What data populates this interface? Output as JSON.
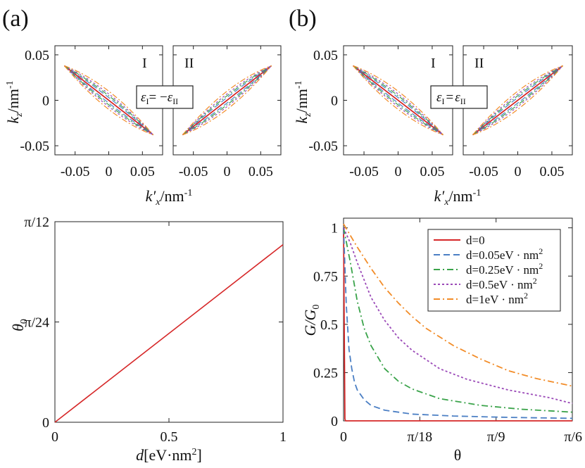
{
  "figure": {
    "panel_a_label": "(a)",
    "panel_b_label": "(b)"
  },
  "chart_data": [
    {
      "id": "a-top",
      "type": "line",
      "panel": "(a)",
      "subplots": [
        "I",
        "II"
      ],
      "annotation_eps": "ε",
      "annotation_sub_I": "I",
      "annotation_equals": "= −",
      "annotation_sub_II": "II",
      "xlabel_main": "k′",
      "xlabel_sub": "x",
      "xlabel_unit": "/nm",
      "xlabel_sup": "-1",
      "ylabel_main": "k",
      "ylabel_sub": "z",
      "ylabel_unit": "/nm",
      "ylabel_sup": "-1",
      "xlim": [
        -0.08,
        0.08
      ],
      "ylim": [
        -0.06,
        0.06
      ],
      "xticks": [
        "-0.05",
        "0",
        "0.05"
      ],
      "yticks": [
        "0.05",
        "0",
        "-0.05"
      ],
      "curve_end_kx": 0.066,
      "curve_end_kz": 0.038,
      "series_bulge": [
        0,
        0.003,
        0.005,
        0.007,
        0.01
      ],
      "series_colors": [
        "#d62728",
        "#4b7fc4",
        "#3aa34a",
        "#9b4ab8",
        "#f28c28"
      ]
    },
    {
      "id": "b-top",
      "type": "line",
      "panel": "(b)",
      "subplots": [
        "I",
        "II"
      ],
      "annotation_eps": "ε",
      "annotation_sub_I": "I",
      "annotation_equals": "=",
      "annotation_sub_II": "II",
      "xlabel_main": "k′",
      "xlabel_sub": "x",
      "xlabel_unit": "/nm",
      "xlabel_sup": "-1",
      "ylabel_main": "k",
      "ylabel_sub": "z",
      "ylabel_unit": "/nm",
      "ylabel_sup": "-1",
      "xlim": [
        -0.08,
        0.08
      ],
      "ylim": [
        -0.06,
        0.06
      ],
      "xticks": [
        "-0.05",
        "0",
        "0.05"
      ],
      "yticks": [
        "0.05",
        "0",
        "-0.05"
      ],
      "curve_end_kx": 0.066,
      "curve_end_kz": 0.038,
      "series_bulge": [
        0,
        0.003,
        0.005,
        0.007,
        0.01
      ],
      "series_colors": [
        "#d62728",
        "#4b7fc4",
        "#3aa34a",
        "#9b4ab8",
        "#f28c28"
      ]
    },
    {
      "id": "a-bottom",
      "type": "line",
      "panel": "(a)",
      "xlabel_main": "d",
      "xlabel_unit": "[eV·nm",
      "xlabel_sup": "2",
      "xlabel_close": "]",
      "ylabel_main": "θ",
      "ylabel_sub": "0",
      "xlim": [
        0,
        1
      ],
      "ylim_frac_of_pi": [
        0,
        0.08333
      ],
      "xticks": [
        "0",
        "0.5",
        "1"
      ],
      "yticks": [
        "0",
        "π/24",
        "π/12"
      ],
      "series": [
        {
          "name": "θ0",
          "x": [
            0,
            1
          ],
          "y_frac_of_pi": [
            0,
            0.0738
          ],
          "color": "#d62728"
        }
      ]
    },
    {
      "id": "b-bottom",
      "type": "line",
      "panel": "(b)",
      "xlabel": "θ",
      "ylabel_main": "G/G",
      "ylabel_sub": "0",
      "xlim_frac_of_pi": [
        0,
        0.16667
      ],
      "ylim": [
        0,
        1.05
      ],
      "xticks": [
        "0",
        "π/18",
        "π/9",
        "π/6"
      ],
      "yticks": [
        "0",
        "0.25",
        "0.5",
        "0.75",
        "1"
      ],
      "legend_position": "top-right",
      "series": [
        {
          "name": "d=0",
          "color": "#d62728",
          "dash": "solid",
          "theta_frac_of_pi": [
            0,
            0.0005,
            0.001,
            0.0015,
            0.1667
          ],
          "G": [
            1.0,
            0.5,
            0.01,
            0.0,
            0.0
          ]
        },
        {
          "name": "d=0.05eV · nm",
          "sup": "2",
          "color": "#4b7fc4",
          "dash": "dashed",
          "theta_frac_of_pi": [
            0,
            0.002,
            0.004,
            0.006,
            0.008,
            0.01,
            0.015,
            0.02,
            0.03,
            0.05,
            0.08,
            0.12,
            0.1667
          ],
          "G": [
            1.0,
            0.6,
            0.37,
            0.27,
            0.2,
            0.16,
            0.11,
            0.08,
            0.055,
            0.035,
            0.025,
            0.018,
            0.013
          ]
        },
        {
          "name": "d=0.25eV · nm",
          "sup": "2",
          "color": "#3aa34a",
          "dash": "dashdot",
          "theta_frac_of_pi": [
            0,
            0.005,
            0.01,
            0.015,
            0.02,
            0.03,
            0.04,
            0.05,
            0.07,
            0.1,
            0.13,
            0.1667
          ],
          "G": [
            1.0,
            0.82,
            0.62,
            0.48,
            0.39,
            0.27,
            0.205,
            0.165,
            0.115,
            0.08,
            0.06,
            0.045
          ]
        },
        {
          "name": "d=0.5eV · nm",
          "sup": "2",
          "color": "#9b4ab8",
          "dash": "dotted",
          "theta_frac_of_pi": [
            0,
            0.005,
            0.01,
            0.02,
            0.03,
            0.04,
            0.05,
            0.07,
            0.09,
            0.12,
            0.15,
            0.1667
          ],
          "G": [
            1.0,
            0.92,
            0.82,
            0.64,
            0.52,
            0.43,
            0.365,
            0.27,
            0.215,
            0.16,
            0.12,
            0.09
          ]
        },
        {
          "name": "d=1eV · nm",
          "sup": "2",
          "color": "#f28c28",
          "dash": "dashdot",
          "theta_frac_of_pi": [
            0,
            0.01,
            0.02,
            0.03,
            0.04,
            0.05,
            0.06,
            0.08,
            0.1,
            0.12,
            0.14,
            0.1667
          ],
          "G": [
            1.02,
            0.9,
            0.79,
            0.69,
            0.61,
            0.54,
            0.48,
            0.39,
            0.32,
            0.26,
            0.22,
            0.18
          ]
        }
      ]
    }
  ]
}
